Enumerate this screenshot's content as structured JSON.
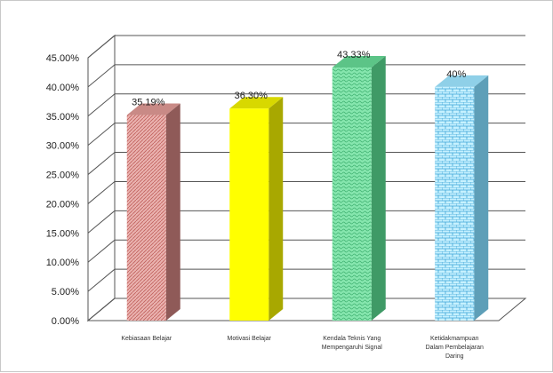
{
  "chart_data": {
    "type": "bar",
    "title": "",
    "xlabel": "",
    "ylabel": "",
    "ylim": [
      0,
      45
    ],
    "y_tick_step": 5,
    "y_tick_labels": [
      "0.00%",
      "5.00%",
      "10.00%",
      "15.00%",
      "20.00%",
      "25.00%",
      "30.00%",
      "35.00%",
      "40.00%",
      "45.00%"
    ],
    "grid": true,
    "three_d": true,
    "categories": [
      [
        "Kebiasaan Belajar"
      ],
      [
        "Motivasi Belajar"
      ],
      [
        "Kendala Teknis Yang",
        "Mempengaruhi Signal"
      ],
      [
        "Ketidakmampuan",
        "Dalam Pembelajaran",
        "Daring"
      ]
    ],
    "values": [
      35.19,
      36.3,
      43.33,
      40
    ],
    "data_labels": [
      "35.19%",
      "36.30%",
      "43.33%",
      "40%"
    ],
    "colors": [
      "#e8a9a6",
      "#ffff00",
      "#7fe3a8",
      "#bfefff"
    ],
    "side_colors": [
      "#8f5a58",
      "#a8a800",
      "#3f9a66",
      "#5e9fb8"
    ],
    "top_colors": [
      "#c98a86",
      "#d8d800",
      "#5cc487",
      "#8fd0e8"
    ],
    "patterns": [
      "diagonal-hatch",
      "solid",
      "wave",
      "brick"
    ]
  }
}
